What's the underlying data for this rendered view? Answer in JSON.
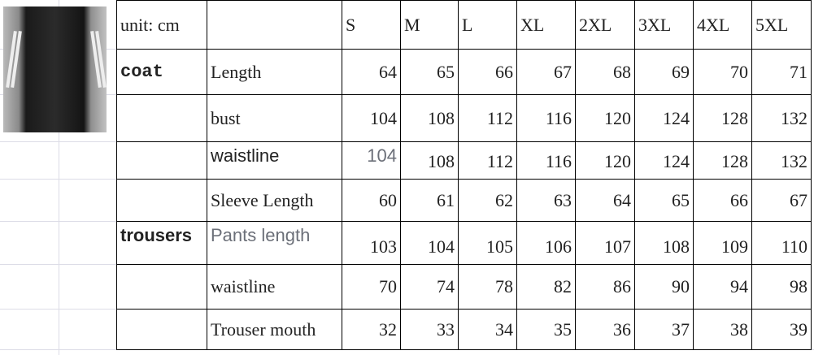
{
  "header": {
    "unit": "unit: cm",
    "sizes": [
      "S",
      "M",
      "L",
      "XL",
      "2XL",
      "3XL",
      "4XL",
      "5XL"
    ]
  },
  "rows": [
    {
      "group": "coat",
      "label": "Length",
      "values": [
        "64",
        "65",
        "66",
        "67",
        "68",
        "69",
        "70",
        "71"
      ]
    },
    {
      "group": "",
      "label": "bust",
      "values": [
        "104",
        "108",
        "112",
        "116",
        "120",
        "124",
        "128",
        "132"
      ]
    },
    {
      "group": "",
      "label": "waistline",
      "values": [
        "104",
        "108",
        "112",
        "116",
        "120",
        "124",
        "128",
        "132"
      ]
    },
    {
      "group": "",
      "label": "Sleeve Length",
      "values": [
        "60",
        "61",
        "62",
        "63",
        "64",
        "65",
        "66",
        "67"
      ]
    },
    {
      "group": "trousers",
      "label": "Pants length",
      "values": [
        "103",
        "104",
        "105",
        "106",
        "107",
        "108",
        "109",
        "110"
      ]
    },
    {
      "group": "",
      "label": "waistline",
      "values": [
        "70",
        "74",
        "78",
        "82",
        "86",
        "90",
        "94",
        "98"
      ]
    },
    {
      "group": "",
      "label": "Trouser mouth",
      "values": [
        "32",
        "33",
        "34",
        "35",
        "36",
        "37",
        "38",
        "39"
      ]
    }
  ],
  "image": {
    "alt_icon": "product-photo-black-leather-tracksuit"
  }
}
